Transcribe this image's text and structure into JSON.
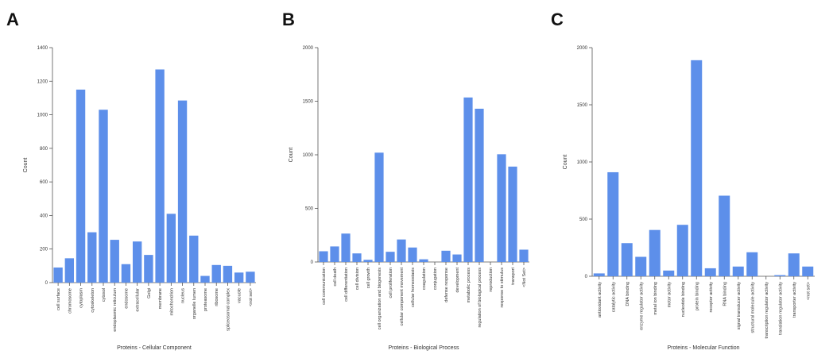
{
  "chart_data": [
    {
      "type": "bar",
      "panel": "A",
      "xlabel": "Proteins - Cellular Component",
      "ylabel": "Count",
      "color": "#5d8fea",
      "categories": [
        "cell surface",
        "chromosome",
        "cytoplasm",
        "cytoskeleton",
        "cytosol",
        "endoplasmic reticulum",
        "endosome",
        "extracellular",
        "Golgi",
        "membrane",
        "mitochondrion",
        "nucleus",
        "organelle lumen",
        "proteasome",
        "ribosome",
        "spliceosomal complex",
        "vacuole",
        "<not set>"
      ],
      "values": [
        90,
        145,
        1150,
        300,
        1030,
        255,
        110,
        245,
        165,
        1270,
        410,
        1085,
        280,
        40,
        105,
        100,
        60,
        65
      ],
      "ylim": [
        0,
        1400
      ],
      "yticks": [
        0,
        200,
        400,
        600,
        800,
        1000,
        1200,
        1400
      ]
    },
    {
      "type": "bar",
      "panel": "B",
      "xlabel": "Proteins - Biological Process",
      "ylabel": "Count",
      "color": "#5d8fea",
      "categories": [
        "cell communication",
        "cell death",
        "cell differentiation",
        "cell division",
        "cell growth",
        "cell organization and biogenesis",
        "cell proliferation",
        "cellular component movement",
        "cellular homeostasis",
        "coagulation",
        "conjugation",
        "defense response",
        "development",
        "metabolic process",
        "regulation of biological process",
        "reproduction",
        "response to stimulus",
        "transport",
        "<Not Set>"
      ],
      "values": [
        100,
        145,
        265,
        80,
        20,
        1020,
        95,
        210,
        135,
        25,
        0,
        105,
        70,
        1535,
        1430,
        0,
        1005,
        890,
        115
      ],
      "ylim": [
        0,
        2000
      ],
      "yticks": [
        0,
        500,
        1000,
        1500,
        2000
      ]
    },
    {
      "type": "bar",
      "panel": "C",
      "xlabel": "Proteins - Molecular Function",
      "ylabel": "Count",
      "color": "#5d8fea",
      "categories": [
        "antioxidant activity",
        "catalytic activity",
        "DNA binding",
        "enzyme regulator activity",
        "metal ion binding",
        "motor activity",
        "nucleotide binding",
        "protein binding",
        "receptor activity",
        "RNA binding",
        "signal transducer activity",
        "structural molecule activity",
        "transcription regulator activity",
        "translation regulator activity",
        "transporter activity",
        "<not set>"
      ],
      "values": [
        25,
        910,
        290,
        170,
        405,
        50,
        450,
        1890,
        70,
        705,
        85,
        210,
        0,
        10,
        200,
        85
      ],
      "ylim": [
        0,
        2000
      ],
      "yticks": [
        0,
        500,
        1000,
        1500,
        2000
      ]
    }
  ]
}
